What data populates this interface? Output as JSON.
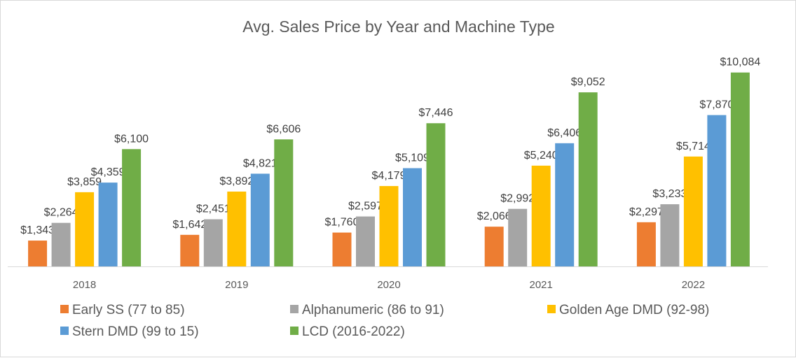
{
  "chart_data": {
    "type": "bar",
    "title": "Avg. Sales Price by Year and Machine Type",
    "xlabel": "",
    "ylabel": "",
    "ylim": [
      0,
      12000
    ],
    "grid": false,
    "legend_position": "bottom",
    "categories": [
      "2018",
      "2019",
      "2020",
      "2021",
      "2022"
    ],
    "series": [
      {
        "name": "Early SS (77 to 85)",
        "color": "#ED7D31",
        "values": [
          1343,
          1642,
          1760,
          2066,
          2297
        ],
        "labels": [
          "$1,343",
          "$1,642",
          "$1,760",
          "$2,066",
          "$2,297"
        ]
      },
      {
        "name": "Alphanumeric (86 to 91)",
        "color": "#A5A5A5",
        "values": [
          2264,
          2451,
          2597,
          2992,
          3233
        ],
        "labels": [
          "$2,264",
          "$2,451",
          "$2,597",
          "$2,992",
          "$3,233"
        ]
      },
      {
        "name": "Golden Age DMD (92-98)",
        "color": "#FFC000",
        "values": [
          3859,
          3892,
          4179,
          5240,
          5714
        ],
        "labels": [
          "$3,859",
          "$3,892",
          "$4,179",
          "$5,240",
          "$5,714"
        ]
      },
      {
        "name": "Stern DMD (99 to 15)",
        "color": "#5B9BD5",
        "values": [
          4359,
          4821,
          5109,
          6406,
          7870
        ],
        "labels": [
          "$4,359",
          "$4,821",
          "$5,109",
          "$6,406",
          "$7,870"
        ]
      },
      {
        "name": "LCD (2016-2022)",
        "color": "#70AD47",
        "values": [
          6100,
          6606,
          7446,
          9052,
          10084
        ],
        "labels": [
          "$6,100",
          "$6,606",
          "$7,446",
          "$9,052",
          "$10,084"
        ]
      }
    ]
  }
}
